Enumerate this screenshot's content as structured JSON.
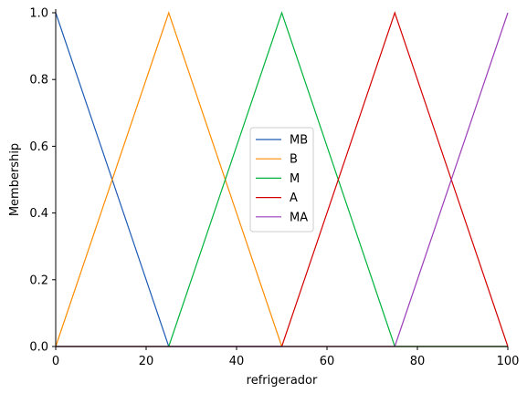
{
  "chart_data": {
    "type": "line",
    "title": "",
    "xlabel": "refrigerador",
    "ylabel": "Membership",
    "xlim": [
      0,
      100
    ],
    "ylim": [
      0,
      1.0
    ],
    "xticks": [
      0,
      20,
      40,
      60,
      80,
      100
    ],
    "yticks": [
      0.0,
      0.2,
      0.4,
      0.6,
      0.8,
      1.0
    ],
    "xtick_labels": [
      "0",
      "20",
      "40",
      "60",
      "80",
      "100"
    ],
    "ytick_labels": [
      "0.0",
      "0.2",
      "0.4",
      "0.6",
      "0.8",
      "1.0"
    ],
    "grid": false,
    "legend_position": "center",
    "series": [
      {
        "name": "MB",
        "color": "#1f5bb4",
        "x": [
          0,
          25,
          100
        ],
        "y": [
          1,
          0,
          0
        ]
      },
      {
        "name": "B",
        "color": "#ff8c00",
        "x": [
          0,
          25,
          50,
          100
        ],
        "y": [
          0,
          1,
          0,
          0
        ]
      },
      {
        "name": "M",
        "color": "#00b33c",
        "x": [
          0,
          25,
          50,
          75,
          100
        ],
        "y": [
          0,
          0,
          1,
          0,
          0
        ]
      },
      {
        "name": "A",
        "color": "#d40000",
        "x": [
          0,
          50,
          75,
          100
        ],
        "y": [
          0,
          0,
          1,
          0
        ]
      },
      {
        "name": "MA",
        "color": "#9a3db8",
        "x": [
          0,
          75,
          100
        ],
        "y": [
          0,
          0,
          1
        ]
      }
    ]
  }
}
